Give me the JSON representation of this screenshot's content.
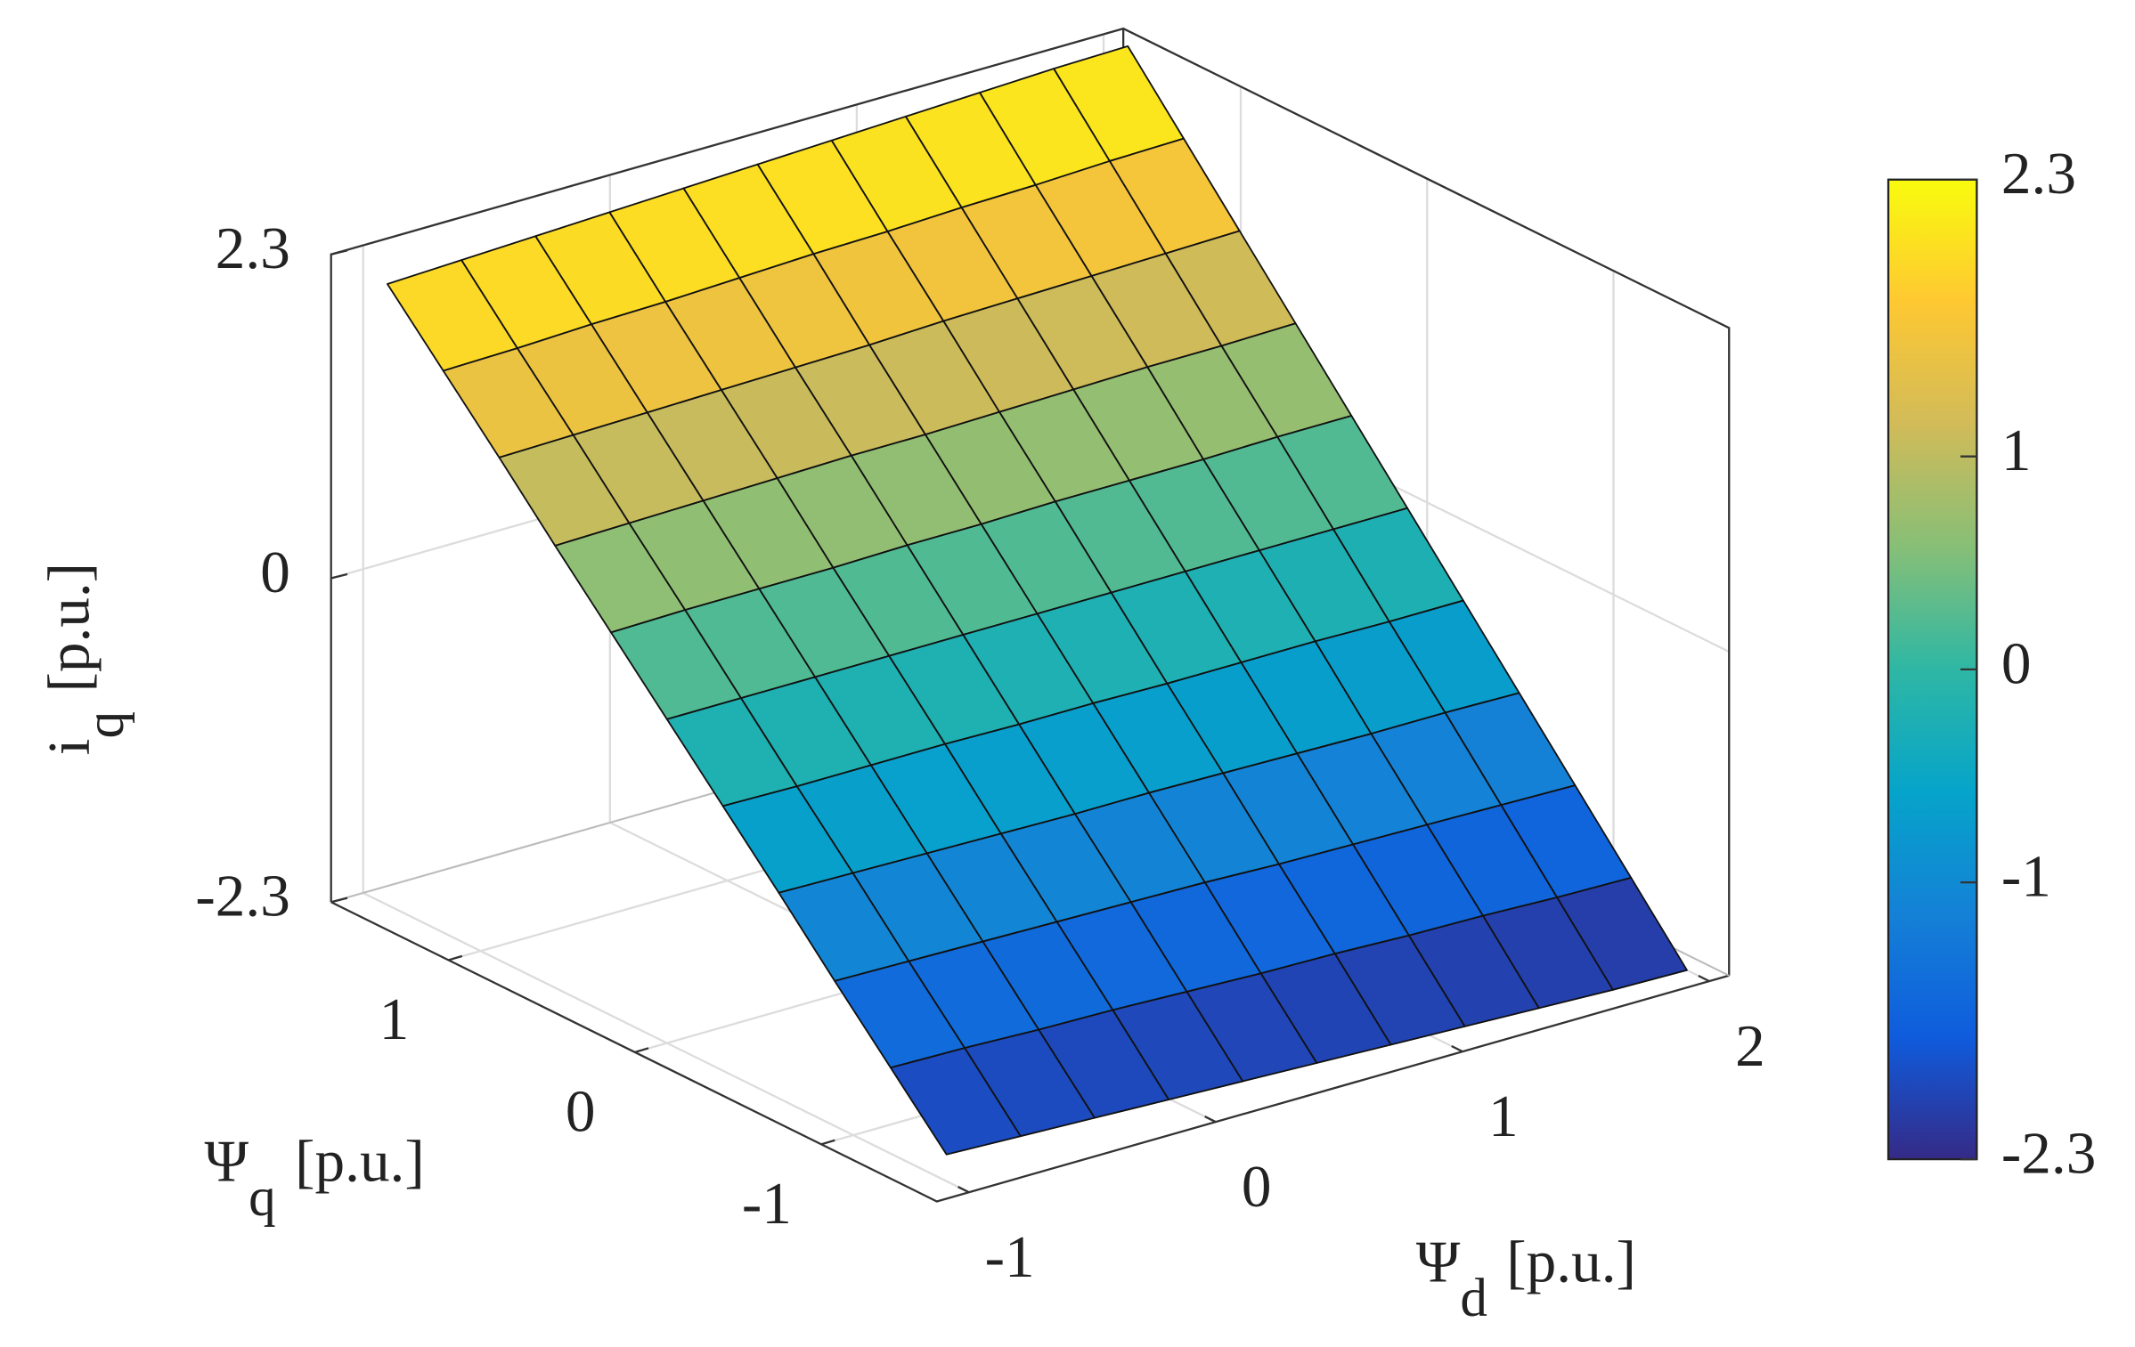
{
  "chart_data": {
    "type": "surface3d",
    "xlabel": {
      "symbol": "Ψ",
      "subscript": "d",
      "unit": "[p.u.]"
    },
    "ylabel": {
      "symbol": "Ψ",
      "subscript": "q",
      "unit": "[p.u.]"
    },
    "zlabel": {
      "symbol": "i",
      "subscript": "q",
      "unit": "[p.u.]"
    },
    "xlim": [
      -1.13,
      2.08
    ],
    "xticks": [
      -1,
      0,
      1,
      2
    ],
    "ylim": [
      -1.62,
      1.63
    ],
    "yticks": [
      -1,
      0,
      1
    ],
    "zlim": [
      -2.3,
      2.3
    ],
    "zticks": [
      -2.3,
      0,
      2.3
    ],
    "grid": true,
    "colormap": [
      "#352a87",
      "#0f5cdd",
      "#1481d6",
      "#06a4ca",
      "#2eb7a4",
      "#87bf77",
      "#d1bb59",
      "#fec832",
      "#f9fb0e"
    ],
    "clim": [
      -2.3,
      2.3
    ],
    "colorbar_ticks": [
      -2.3,
      -1,
      0,
      1,
      2.3
    ],
    "x": [
      -1.0,
      -0.7,
      -0.4,
      -0.1,
      0.2,
      0.5,
      0.8,
      1.1,
      1.4,
      1.7,
      2.0
    ],
    "y": [
      -1.5,
      -1.2,
      -0.9,
      -0.6,
      -0.3,
      0,
      0.3,
      0.6,
      0.9,
      1.2,
      1.5
    ],
    "z": [
      [
        -2.11,
        -2.13,
        -2.15,
        -2.17,
        -2.19,
        -2.21,
        -2.23,
        -2.25,
        -2.27,
        -2.29,
        -2.3
      ],
      [
        -1.69,
        -1.7,
        -1.72,
        -1.73,
        -1.75,
        -1.77,
        -1.78,
        -1.8,
        -1.81,
        -1.83,
        -1.84
      ],
      [
        -1.27,
        -1.28,
        -1.29,
        -1.3,
        -1.31,
        -1.32,
        -1.34,
        -1.35,
        -1.36,
        -1.37,
        -1.38
      ],
      [
        -0.84,
        -0.85,
        -0.86,
        -0.87,
        -0.88,
        -0.88,
        -0.89,
        -0.9,
        -0.91,
        -0.91,
        -0.92
      ],
      [
        -0.42,
        -0.43,
        -0.43,
        -0.43,
        -0.44,
        -0.44,
        -0.45,
        -0.45,
        -0.45,
        -0.46,
        -0.46
      ],
      [
        0,
        0,
        0,
        0,
        0,
        0,
        0,
        0,
        0,
        0,
        0
      ],
      [
        0.42,
        0.43,
        0.43,
        0.43,
        0.44,
        0.44,
        0.45,
        0.45,
        0.45,
        0.46,
        0.46
      ],
      [
        0.84,
        0.85,
        0.86,
        0.87,
        0.88,
        0.88,
        0.89,
        0.9,
        0.91,
        0.91,
        0.92
      ],
      [
        1.27,
        1.28,
        1.29,
        1.3,
        1.31,
        1.32,
        1.34,
        1.35,
        1.36,
        1.37,
        1.38
      ],
      [
        1.69,
        1.7,
        1.72,
        1.73,
        1.75,
        1.77,
        1.78,
        1.8,
        1.81,
        1.83,
        1.84
      ],
      [
        2.11,
        2.13,
        2.15,
        2.17,
        2.19,
        2.21,
        2.23,
        2.25,
        2.27,
        2.29,
        2.3
      ]
    ]
  }
}
